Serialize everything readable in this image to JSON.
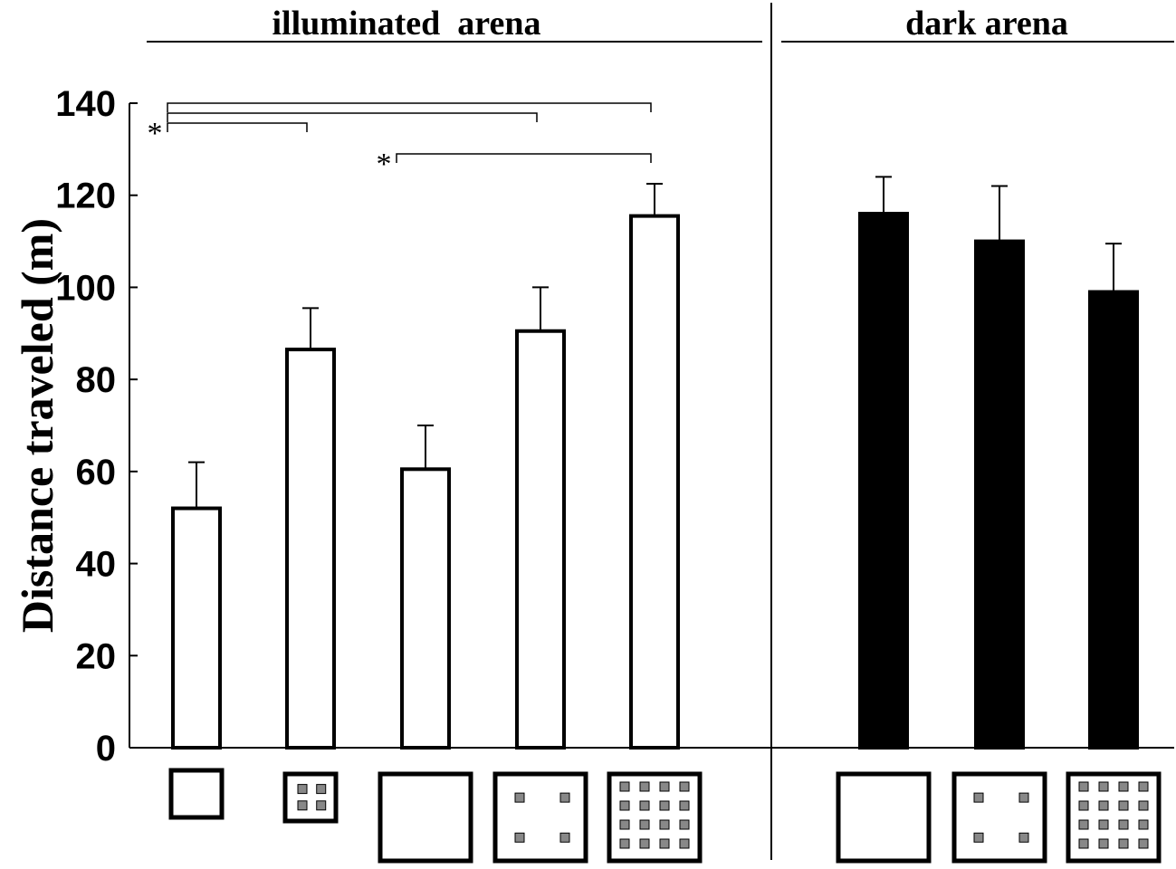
{
  "chart_data": {
    "type": "bar",
    "ylabel": "Distance traveled (m)",
    "ylim": [
      0,
      140
    ],
    "yticks": [
      0,
      20,
      40,
      60,
      80,
      100,
      120,
      140
    ],
    "grid": false,
    "legend": "none",
    "panels": [
      {
        "title": "illuminated  arena",
        "bar_color": "#ffffff",
        "bars": [
          {
            "arena": "small-empty",
            "value": 52,
            "error": 10
          },
          {
            "arena": "small-4-objects",
            "value": 86.5,
            "error": 9
          },
          {
            "arena": "large-empty",
            "value": 60.5,
            "error": 9.5
          },
          {
            "arena": "large-4-objects",
            "value": 90.5,
            "error": 9.5
          },
          {
            "arena": "large-16-objects",
            "value": 115.5,
            "error": 7
          }
        ]
      },
      {
        "title": "dark arena",
        "bar_color": "#000000",
        "bars": [
          {
            "arena": "large-empty",
            "value": 116,
            "error": 8
          },
          {
            "arena": "large-4-objects",
            "value": 110,
            "error": 12
          },
          {
            "arena": "large-16-objects",
            "value": 99,
            "error": 10.5
          }
        ]
      }
    ],
    "significance": [
      {
        "from": 0,
        "to": [
          1,
          3,
          4
        ],
        "label": "*"
      },
      {
        "from": 2,
        "to": [
          4
        ],
        "label": "*"
      }
    ]
  }
}
